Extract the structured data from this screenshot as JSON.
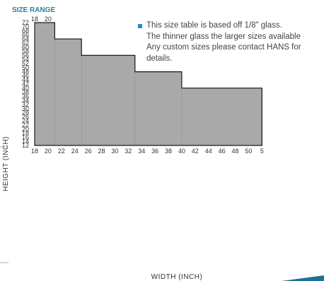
{
  "chart_data": {
    "type": "bar",
    "title": "SIZE RANGE",
    "xlabel": "WIDTH  (INCH)",
    "ylabel": "HEIGHT (INCH)",
    "x_ticks": [
      "18",
      "20",
      "22",
      "24",
      "26",
      "28",
      "30",
      "32",
      "34",
      "36",
      "38",
      "40",
      "42",
      "44",
      "46",
      "48",
      "50",
      "5"
    ],
    "top_ticks": [
      "18",
      "20"
    ],
    "y_ticks": [
      72,
      70,
      68,
      66,
      64,
      62,
      60,
      58,
      56,
      54,
      52,
      50,
      48,
      46,
      44,
      42,
      40,
      38,
      36,
      34,
      32,
      30,
      28,
      26,
      24,
      22,
      20,
      18,
      16,
      14,
      12
    ],
    "ylim": [
      12,
      72
    ],
    "xlim": [
      18,
      52
    ],
    "grid": true,
    "series": [
      {
        "values": [
          {
            "width_from": 18,
            "width_to": 21,
            "max_height": 72
          },
          {
            "width_from": 21,
            "width_to": 25,
            "max_height": 64
          },
          {
            "width_from": 25,
            "width_to": 33,
            "max_height": 56
          },
          {
            "width_from": 33,
            "width_to": 40,
            "max_height": 48
          },
          {
            "width_from": 40,
            "width_to": 52,
            "max_height": 40
          }
        ]
      }
    ]
  },
  "note": {
    "lines": [
      "This size table is based off 1/8\" glass.",
      "The thinner glass the larger sizes available",
      "Any custom sizes please contact HANS for",
      "details."
    ]
  },
  "colors": {
    "fill": "#a9a9a9",
    "grid": "#1a1a1a",
    "heading": "#2b7fa6",
    "bullet": "#2b8bbf",
    "accent": "#1d6f9a"
  }
}
